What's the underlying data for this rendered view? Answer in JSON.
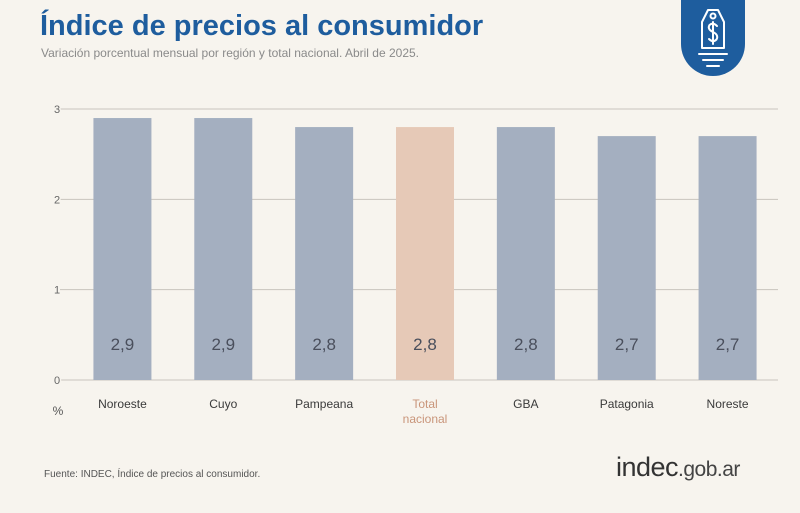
{
  "header": {
    "title": "Índice de precios al consumidor",
    "subtitle": "Variación porcentual mensual por región y total nacional. Abril de 2025."
  },
  "footer": {
    "source": "Fuente: INDEC, Índice de precios al consumidor.",
    "brand_main": "indec",
    "brand_suffix": ".gob.ar"
  },
  "colors": {
    "bar": "#a4afc0",
    "bar_highlight": "#e6c9b7",
    "label_highlight": "#c9957a",
    "brand": "#1e5d9e"
  },
  "icons": {
    "badge": "price-tag-dollar-icon"
  },
  "chart_data": {
    "type": "bar",
    "categories": [
      "Noroeste",
      "Cuyo",
      "Pampeana",
      "Total\nnacional",
      "GBA",
      "Patagonia",
      "Noreste"
    ],
    "values": [
      2.9,
      2.9,
      2.8,
      2.8,
      2.8,
      2.7,
      2.7
    ],
    "value_labels": [
      "2,9",
      "2,9",
      "2,8",
      "2,8",
      "2,8",
      "2,7",
      "2,7"
    ],
    "highlight_index": 3,
    "ylim": [
      0,
      3
    ],
    "yticks": [
      0,
      1,
      2,
      3
    ],
    "ylabel": "%",
    "grid": true
  }
}
